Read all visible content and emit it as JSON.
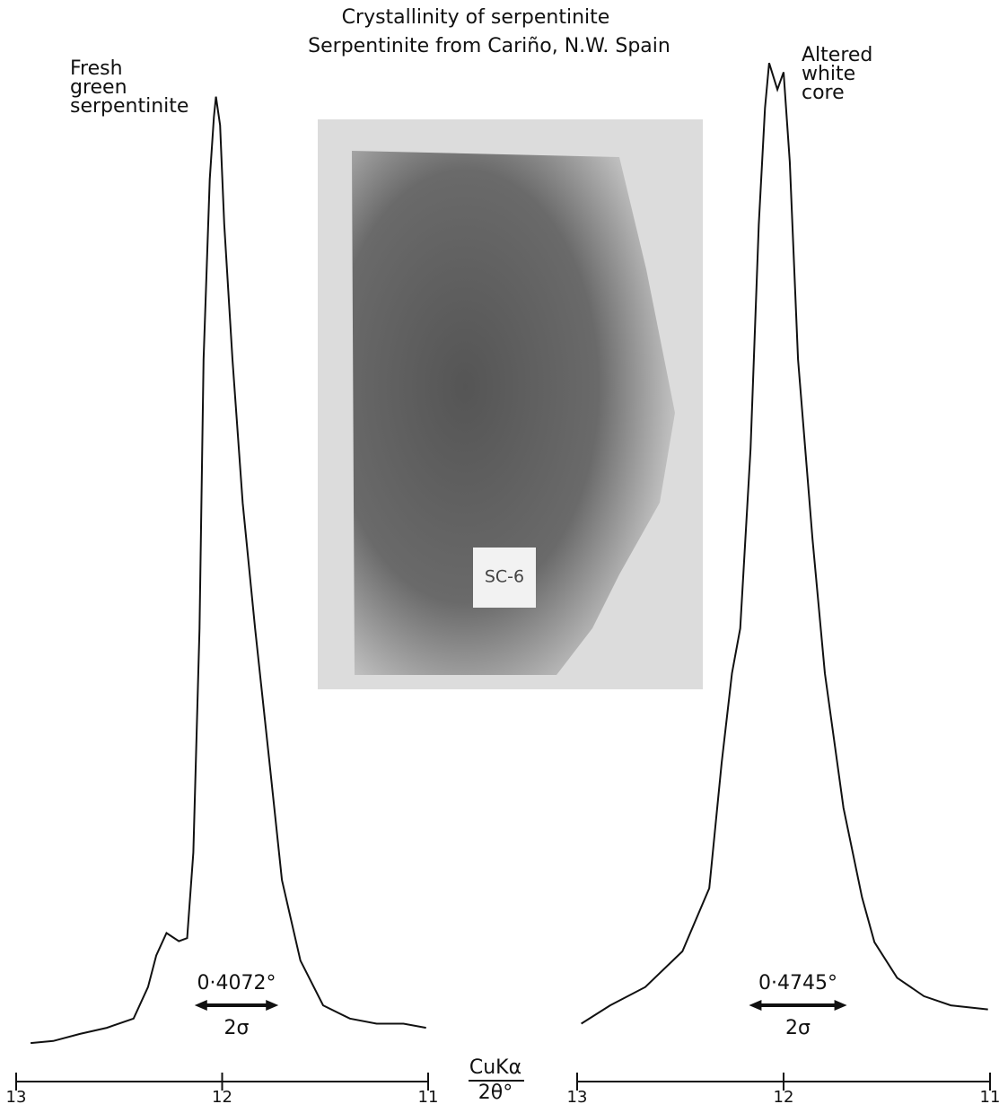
{
  "title": "Crystallinity of serpentinite",
  "subtitle": "Serpentinite from Cariño, N.W. Spain",
  "axis_label": {
    "top": "CuKα",
    "bottom": "2θ°"
  },
  "photo_label": "SC-6",
  "chart_data": [
    {
      "type": "line",
      "label": [
        "Fresh",
        "green",
        "serpentinite"
      ],
      "x": [
        12.93,
        12.82,
        12.69,
        12.56,
        12.43,
        12.36,
        12.32,
        12.27,
        12.21,
        12.17,
        12.14,
        12.11,
        12.09,
        12.06,
        12.04,
        12.03,
        12.01,
        11.99,
        11.95,
        11.9,
        11.84,
        11.77,
        11.71,
        11.62,
        11.51,
        11.38,
        11.25,
        11.12,
        11.01
      ],
      "values": [
        2.9,
        3.1,
        3.8,
        4.4,
        5.3,
        8.4,
        11.5,
        13.7,
        12.9,
        13.2,
        21.6,
        43.6,
        70,
        87.7,
        93.8,
        95.8,
        93,
        83.3,
        70,
        55.9,
        43.6,
        30.4,
        18.9,
        11,
        6.6,
        5.3,
        4.8,
        4.8,
        4.4
      ],
      "width": {
        "value": 0.4072,
        "label": "0·4072°"
      },
      "width_name": "2σ",
      "xlim": [
        13,
        11
      ],
      "xticks": [
        13,
        12,
        11
      ],
      "ylim": [
        0,
        100
      ],
      "color": "#111111"
    },
    {
      "type": "line",
      "label": [
        "Altered",
        "white",
        "core"
      ],
      "x": [
        12.98,
        12.84,
        12.67,
        12.49,
        12.36,
        12.3,
        12.25,
        12.21,
        12.16,
        12.12,
        12.09,
        12.07,
        12.03,
        12,
        11.97,
        11.93,
        11.86,
        11.8,
        11.71,
        11.62,
        11.56,
        11.45,
        11.32,
        11.19,
        11.01
      ],
      "values": [
        4.8,
        6.6,
        8.4,
        11.9,
        18.1,
        30.4,
        39.2,
        43.6,
        61.2,
        83.3,
        94.7,
        99.1,
        96.5,
        98.2,
        89.4,
        70,
        52.4,
        39.2,
        26,
        17.2,
        12.8,
        9.3,
        7.5,
        6.6,
        6.2
      ],
      "width": {
        "value": 0.4745,
        "label": "0·4745°"
      },
      "width_name": "2σ",
      "xlim": [
        13,
        11
      ],
      "xticks": [
        13,
        12,
        11
      ],
      "ylim": [
        0,
        100
      ],
      "color": "#111111"
    }
  ]
}
